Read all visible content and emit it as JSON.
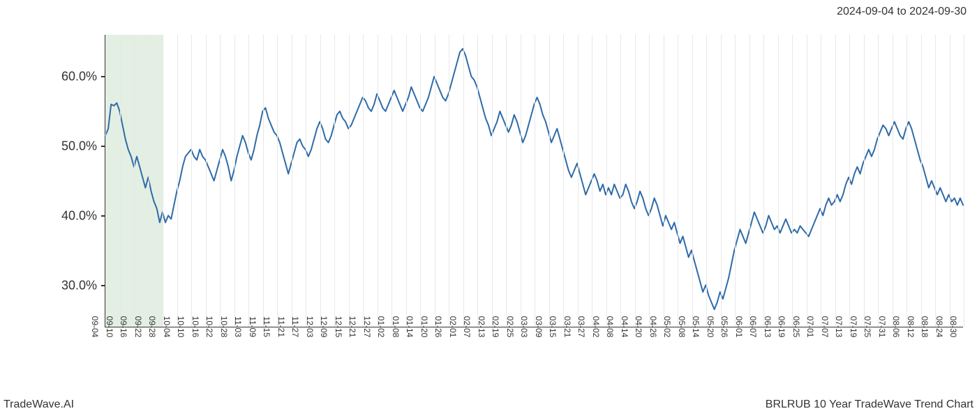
{
  "header": {
    "date_range": "2024-09-04 to 2024-09-30"
  },
  "footer": {
    "brand": "TradeWave.AI",
    "chart_title": "BRLRUB 10 Year TradeWave Trend Chart"
  },
  "chart": {
    "type": "line",
    "line_color": "#2e6ba8",
    "line_width": 2,
    "background_color": "#ffffff",
    "grid_color": "#e8e8e8",
    "axis_color": "#333333",
    "highlight_band": {
      "color": "rgba(144,190,144,0.25)",
      "x_start_index": 0,
      "x_end_index": 4
    },
    "y_axis": {
      "min": 24,
      "max": 66,
      "ticks": [
        30,
        40,
        50,
        60
      ],
      "tick_labels": [
        "30.0%",
        "40.0%",
        "50.0%",
        "60.0%"
      ],
      "label_fontsize": 18
    },
    "x_axis": {
      "labels": [
        "09-04",
        "09-10",
        "09-16",
        "09-22",
        "09-28",
        "10-04",
        "10-10",
        "10-16",
        "10-22",
        "10-28",
        "11-03",
        "11-09",
        "11-15",
        "11-21",
        "11-27",
        "12-03",
        "12-09",
        "12-15",
        "12-21",
        "12-27",
        "01-02",
        "01-08",
        "01-14",
        "01-20",
        "01-26",
        "02-01",
        "02-07",
        "02-13",
        "02-19",
        "02-25",
        "03-03",
        "03-09",
        "03-15",
        "03-21",
        "03-27",
        "04-02",
        "04-08",
        "04-14",
        "04-20",
        "04-26",
        "05-02",
        "05-08",
        "05-14",
        "05-20",
        "05-26",
        "06-01",
        "06-07",
        "06-13",
        "06-19",
        "06-25",
        "07-01",
        "07-07",
        "07-13",
        "07-19",
        "07-25",
        "07-31",
        "08-06",
        "08-12",
        "08-18",
        "08-24",
        "08-30"
      ],
      "label_fontsize": 12,
      "label_rotation": 90
    },
    "series": {
      "name": "BRLRUB",
      "values": [
        51.5,
        52.5,
        56.0,
        55.8,
        56.2,
        55.0,
        53.0,
        51.0,
        49.5,
        48.5,
        47.0,
        48.5,
        47.0,
        45.5,
        44.0,
        45.5,
        43.5,
        42.0,
        41.0,
        39.0,
        40.5,
        39.0,
        40.0,
        39.5,
        41.5,
        43.5,
        45.0,
        47.0,
        48.5,
        49.0,
        49.5,
        48.5,
        48.0,
        49.5,
        48.5,
        48.0,
        47.0,
        46.0,
        45.0,
        46.5,
        48.0,
        49.5,
        48.5,
        47.0,
        45.0,
        46.5,
        48.5,
        50.0,
        51.5,
        50.5,
        49.0,
        48.0,
        49.5,
        51.5,
        53.0,
        55.0,
        55.5,
        54.0,
        53.0,
        52.0,
        51.5,
        50.5,
        49.0,
        47.5,
        46.0,
        47.5,
        49.0,
        50.5,
        51.0,
        50.0,
        49.5,
        48.5,
        49.5,
        51.0,
        52.5,
        53.5,
        52.5,
        51.0,
        50.5,
        51.5,
        53.0,
        54.5,
        55.0,
        54.0,
        53.5,
        52.5,
        53.0,
        54.0,
        55.0,
        56.0,
        57.0,
        56.5,
        55.5,
        55.0,
        56.0,
        57.5,
        56.5,
        55.5,
        55.0,
        56.0,
        57.0,
        58.0,
        57.0,
        56.0,
        55.0,
        56.0,
        57.0,
        58.5,
        57.5,
        56.5,
        55.5,
        55.0,
        56.0,
        57.0,
        58.5,
        60.0,
        59.0,
        58.0,
        57.0,
        56.5,
        57.5,
        59.0,
        60.5,
        62.0,
        63.5,
        64.0,
        63.0,
        61.5,
        60.0,
        59.5,
        58.5,
        57.0,
        55.5,
        54.0,
        53.0,
        51.5,
        52.5,
        53.5,
        55.0,
        54.0,
        53.0,
        52.0,
        53.0,
        54.5,
        53.5,
        52.0,
        50.5,
        51.5,
        53.0,
        54.5,
        56.0,
        57.0,
        56.0,
        54.5,
        53.5,
        52.0,
        50.5,
        51.5,
        52.5,
        51.0,
        49.5,
        48.0,
        46.5,
        45.5,
        46.5,
        47.5,
        46.0,
        44.5,
        43.0,
        44.0,
        45.0,
        46.0,
        45.0,
        43.5,
        44.5,
        43.0,
        44.0,
        43.0,
        44.5,
        43.5,
        42.5,
        43.0,
        44.5,
        43.5,
        42.0,
        41.0,
        42.0,
        43.5,
        42.5,
        41.0,
        40.0,
        41.0,
        42.5,
        41.5,
        40.0,
        38.5,
        40.0,
        39.0,
        38.0,
        39.0,
        37.5,
        36.0,
        37.0,
        35.5,
        34.0,
        35.0,
        33.5,
        32.0,
        30.5,
        29.0,
        30.0,
        28.5,
        27.5,
        26.5,
        27.5,
        29.0,
        28.0,
        29.5,
        31.0,
        33.0,
        35.0,
        36.5,
        38.0,
        37.0,
        36.0,
        37.5,
        39.0,
        40.5,
        39.5,
        38.5,
        37.5,
        38.5,
        40.0,
        39.0,
        38.0,
        38.5,
        37.5,
        38.5,
        39.5,
        38.5,
        37.5,
        38.0,
        37.5,
        38.5,
        38.0,
        37.5,
        37.0,
        38.0,
        39.0,
        40.0,
        41.0,
        40.0,
        41.5,
        42.5,
        41.5,
        42.0,
        43.0,
        42.0,
        43.0,
        44.5,
        45.5,
        44.5,
        46.0,
        47.0,
        46.0,
        47.5,
        48.5,
        49.5,
        48.5,
        49.5,
        51.0,
        52.0,
        53.0,
        52.5,
        51.5,
        52.5,
        53.5,
        52.5,
        51.5,
        51.0,
        52.5,
        53.5,
        52.5,
        51.0,
        49.5,
        48.0,
        47.0,
        45.5,
        44.0,
        45.0,
        44.0,
        43.0,
        44.0,
        43.0,
        42.0,
        43.0,
        42.0,
        42.5,
        41.5,
        42.5,
        41.5
      ]
    }
  }
}
